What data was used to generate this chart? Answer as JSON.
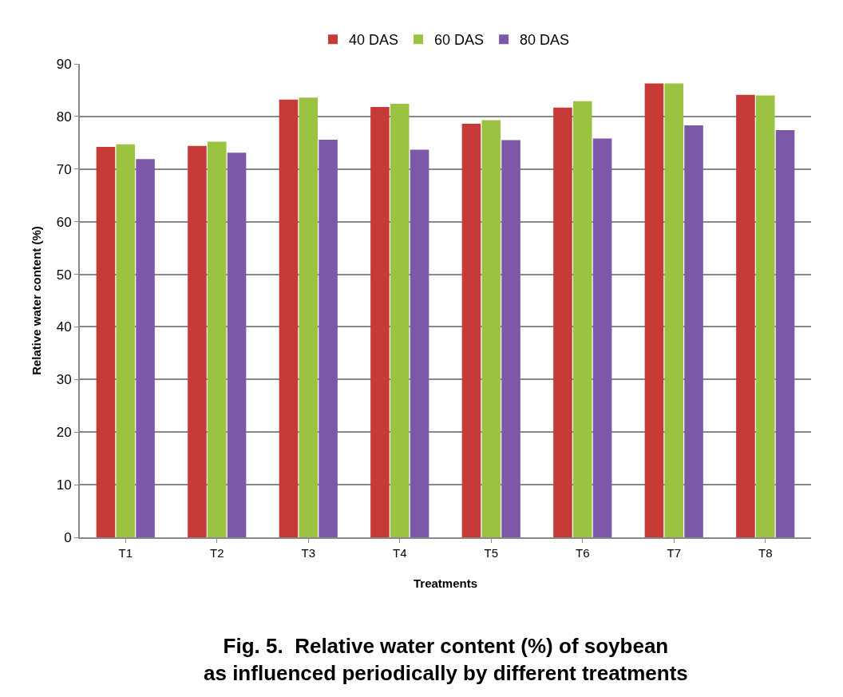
{
  "chart_data": {
    "type": "bar",
    "title": "Fig. 5.  Relative water content (%) of soybean as influenced periodically by different treatments",
    "xlabel": "Treatments",
    "ylabel": "Relative water content (%)",
    "categories": [
      "T1",
      "T2",
      "T3",
      "T4",
      "T5",
      "T6",
      "T7",
      "T8"
    ],
    "series": [
      {
        "name": "40 DAS",
        "color": "#c63a37",
        "values": [
          74.2,
          74.4,
          83.2,
          81.8,
          78.6,
          81.7,
          86.3,
          84.1
        ]
      },
      {
        "name": "60 DAS",
        "color": "#9bc241",
        "values": [
          74.7,
          75.2,
          83.6,
          82.4,
          79.3,
          82.9,
          86.3,
          84.0
        ]
      },
      {
        "name": "80 DAS",
        "color": "#7b58a8",
        "values": [
          71.9,
          73.1,
          75.6,
          73.7,
          75.5,
          75.8,
          78.3,
          77.4
        ]
      }
    ],
    "ylim": [
      0,
      90
    ],
    "yticks": [
      0,
      10,
      20,
      30,
      40,
      50,
      60,
      70,
      80,
      90
    ],
    "grid": "y",
    "legend": "top"
  }
}
